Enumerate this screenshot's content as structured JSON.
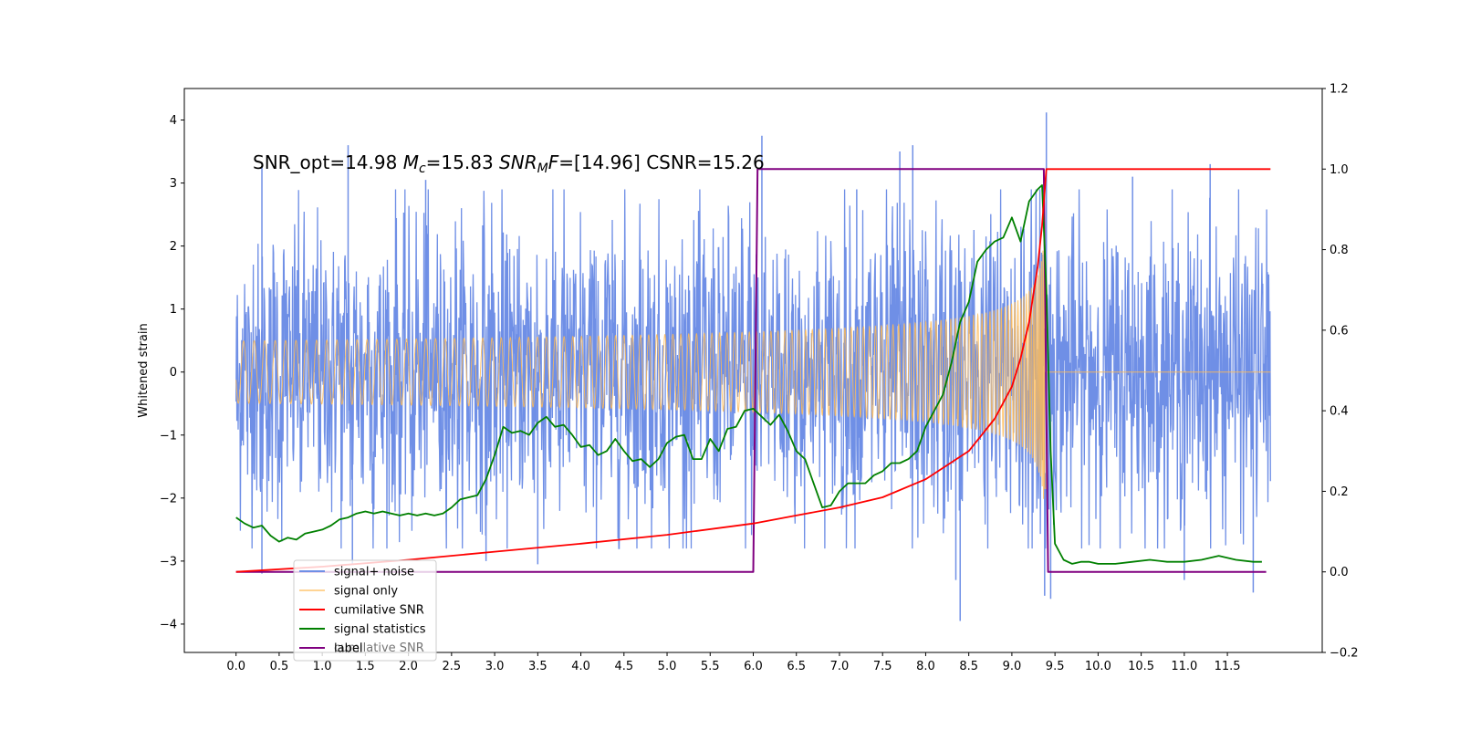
{
  "chart_data": {
    "type": "line",
    "title_parts": {
      "a": "SNR_opt=14.98 ",
      "mc_symbol": "M",
      "mc_sub": "c",
      "b": "=15.83  ",
      "snr_symbol": "SNR",
      "snr_sub": "M",
      "f_symbol": "F",
      "c": "=[14.96] CSNR=15.26"
    },
    "ylabel": "Whitened strain",
    "xlim": [
      -0.6,
      12.6
    ],
    "ylim": [
      -4.45,
      4.5
    ],
    "y2lim": [
      -0.2,
      1.2
    ],
    "x_ticks": [
      "0.0",
      "0.5",
      "1.0",
      "1.5",
      "2.0",
      "2.5",
      "3.0",
      "3.5",
      "4.0",
      "4.5",
      "5.0",
      "5.5",
      "6.0",
      "6.5",
      "7.0",
      "7.5",
      "8.0",
      "8.5",
      "9.0",
      "9.5",
      "10.0",
      "10.5",
      "11.0",
      "11.5"
    ],
    "y_ticks": [
      4,
      3,
      2,
      1,
      0,
      -1,
      -2,
      -3,
      -4
    ],
    "y2_ticks": [
      "1.2",
      "1.0",
      "0.8",
      "0.6",
      "0.4",
      "0.2",
      "0.0",
      "−0.2"
    ],
    "y_tick_text": [
      "4",
      "3",
      "2",
      "1",
      "0",
      "−1",
      "−2",
      "−3",
      "−4"
    ],
    "legend_position": "lower-left",
    "legend_hidden_text": "cumilative SNR",
    "series": [
      {
        "name": "signal+ noise",
        "axis": "left",
        "color": "#6f8fe6",
        "x_range": [
          0,
          12
        ],
        "noise_std": 1.15,
        "spikes": [
          [
            0.3,
            3.25
          ],
          [
            0.3,
            -3.2
          ],
          [
            1.3,
            3.6
          ],
          [
            1.35,
            -3.05
          ],
          [
            2.9,
            -3.0
          ],
          [
            3.5,
            -3.05
          ],
          [
            6.1,
            3.75
          ],
          [
            7.2,
            2.9
          ],
          [
            7.7,
            3.5
          ],
          [
            7.85,
            3.6
          ],
          [
            8.4,
            -3.95
          ],
          [
            8.35,
            -3.3
          ],
          [
            9.4,
            4.12
          ],
          [
            9.38,
            -3.55
          ],
          [
            9.45,
            -3.6
          ],
          [
            11.3,
            3.3
          ],
          [
            11.0,
            -3.3
          ],
          [
            11.8,
            -3.5
          ],
          [
            10.4,
            3.1
          ],
          [
            2.2,
            3.05
          ]
        ]
      },
      {
        "name": "signal only",
        "axis": "left",
        "color": "#ffbb55",
        "merger_time": 9.4,
        "peak_amplitude": 2.3
      },
      {
        "name": "cumilative SNR",
        "axis": "right",
        "color": "#ff0000",
        "x": [
          0.0,
          1.0,
          2.0,
          3.0,
          4.0,
          5.0,
          6.0,
          6.5,
          7.0,
          7.5,
          8.0,
          8.5,
          8.8,
          9.0,
          9.1,
          9.2,
          9.3,
          9.35,
          9.4,
          9.45,
          12.0
        ],
        "values": [
          0.0,
          0.013,
          0.03,
          0.05,
          0.07,
          0.092,
          0.12,
          0.14,
          0.16,
          0.185,
          0.23,
          0.3,
          0.38,
          0.46,
          0.53,
          0.62,
          0.76,
          0.86,
          1.0,
          1.0,
          1.0
        ]
      },
      {
        "name": "signal statistics",
        "axis": "right",
        "color": "#008000",
        "x": [
          0.0,
          0.1,
          0.2,
          0.3,
          0.4,
          0.5,
          0.6,
          0.7,
          0.8,
          0.9,
          1.0,
          1.1,
          1.2,
          1.3,
          1.4,
          1.5,
          1.6,
          1.7,
          1.8,
          1.9,
          2.0,
          2.1,
          2.2,
          2.3,
          2.4,
          2.5,
          2.6,
          2.7,
          2.8,
          2.9,
          3.0,
          3.1,
          3.2,
          3.3,
          3.4,
          3.5,
          3.6,
          3.7,
          3.8,
          3.9,
          4.0,
          4.1,
          4.2,
          4.3,
          4.4,
          4.5,
          4.6,
          4.7,
          4.8,
          4.9,
          5.0,
          5.1,
          5.2,
          5.3,
          5.4,
          5.5,
          5.6,
          5.7,
          5.8,
          5.9,
          6.0,
          6.1,
          6.2,
          6.3,
          6.4,
          6.5,
          6.6,
          6.7,
          6.8,
          6.9,
          7.0,
          7.1,
          7.2,
          7.3,
          7.4,
          7.5,
          7.6,
          7.7,
          7.8,
          7.9,
          8.0,
          8.1,
          8.2,
          8.3,
          8.4,
          8.5,
          8.6,
          8.7,
          8.8,
          8.9,
          9.0,
          9.1,
          9.2,
          9.3,
          9.35,
          9.4,
          9.45,
          9.5,
          9.6,
          9.7,
          9.8,
          9.9,
          10.0,
          10.2,
          10.4,
          10.6,
          10.8,
          11.0,
          11.2,
          11.4,
          11.6,
          11.8,
          11.9
        ],
        "values": [
          0.135,
          0.12,
          0.11,
          0.115,
          0.09,
          0.075,
          0.085,
          0.08,
          0.095,
          0.1,
          0.105,
          0.115,
          0.13,
          0.135,
          0.145,
          0.15,
          0.145,
          0.15,
          0.145,
          0.14,
          0.145,
          0.14,
          0.145,
          0.14,
          0.145,
          0.16,
          0.18,
          0.185,
          0.19,
          0.23,
          0.29,
          0.36,
          0.345,
          0.35,
          0.34,
          0.37,
          0.385,
          0.36,
          0.365,
          0.34,
          0.31,
          0.315,
          0.29,
          0.3,
          0.33,
          0.3,
          0.275,
          0.28,
          0.26,
          0.28,
          0.32,
          0.335,
          0.34,
          0.28,
          0.28,
          0.33,
          0.3,
          0.355,
          0.36,
          0.4,
          0.405,
          0.385,
          0.365,
          0.39,
          0.35,
          0.3,
          0.28,
          0.22,
          0.16,
          0.165,
          0.2,
          0.22,
          0.22,
          0.22,
          0.24,
          0.25,
          0.27,
          0.27,
          0.28,
          0.3,
          0.36,
          0.4,
          0.44,
          0.52,
          0.62,
          0.67,
          0.77,
          0.8,
          0.82,
          0.83,
          0.88,
          0.82,
          0.92,
          0.95,
          0.96,
          0.7,
          0.3,
          0.07,
          0.03,
          0.02,
          0.025,
          0.025,
          0.02,
          0.02,
          0.025,
          0.03,
          0.025,
          0.025,
          0.03,
          0.04,
          0.03,
          0.025,
          0.025
        ]
      },
      {
        "name": "label",
        "axis": "right",
        "color": "#800080",
        "x": [
          0.0,
          6.0,
          6.05,
          9.37,
          9.42,
          11.95
        ],
        "values": [
          0.0,
          0.0,
          1.0,
          1.0,
          0.0,
          0.0
        ]
      }
    ]
  }
}
